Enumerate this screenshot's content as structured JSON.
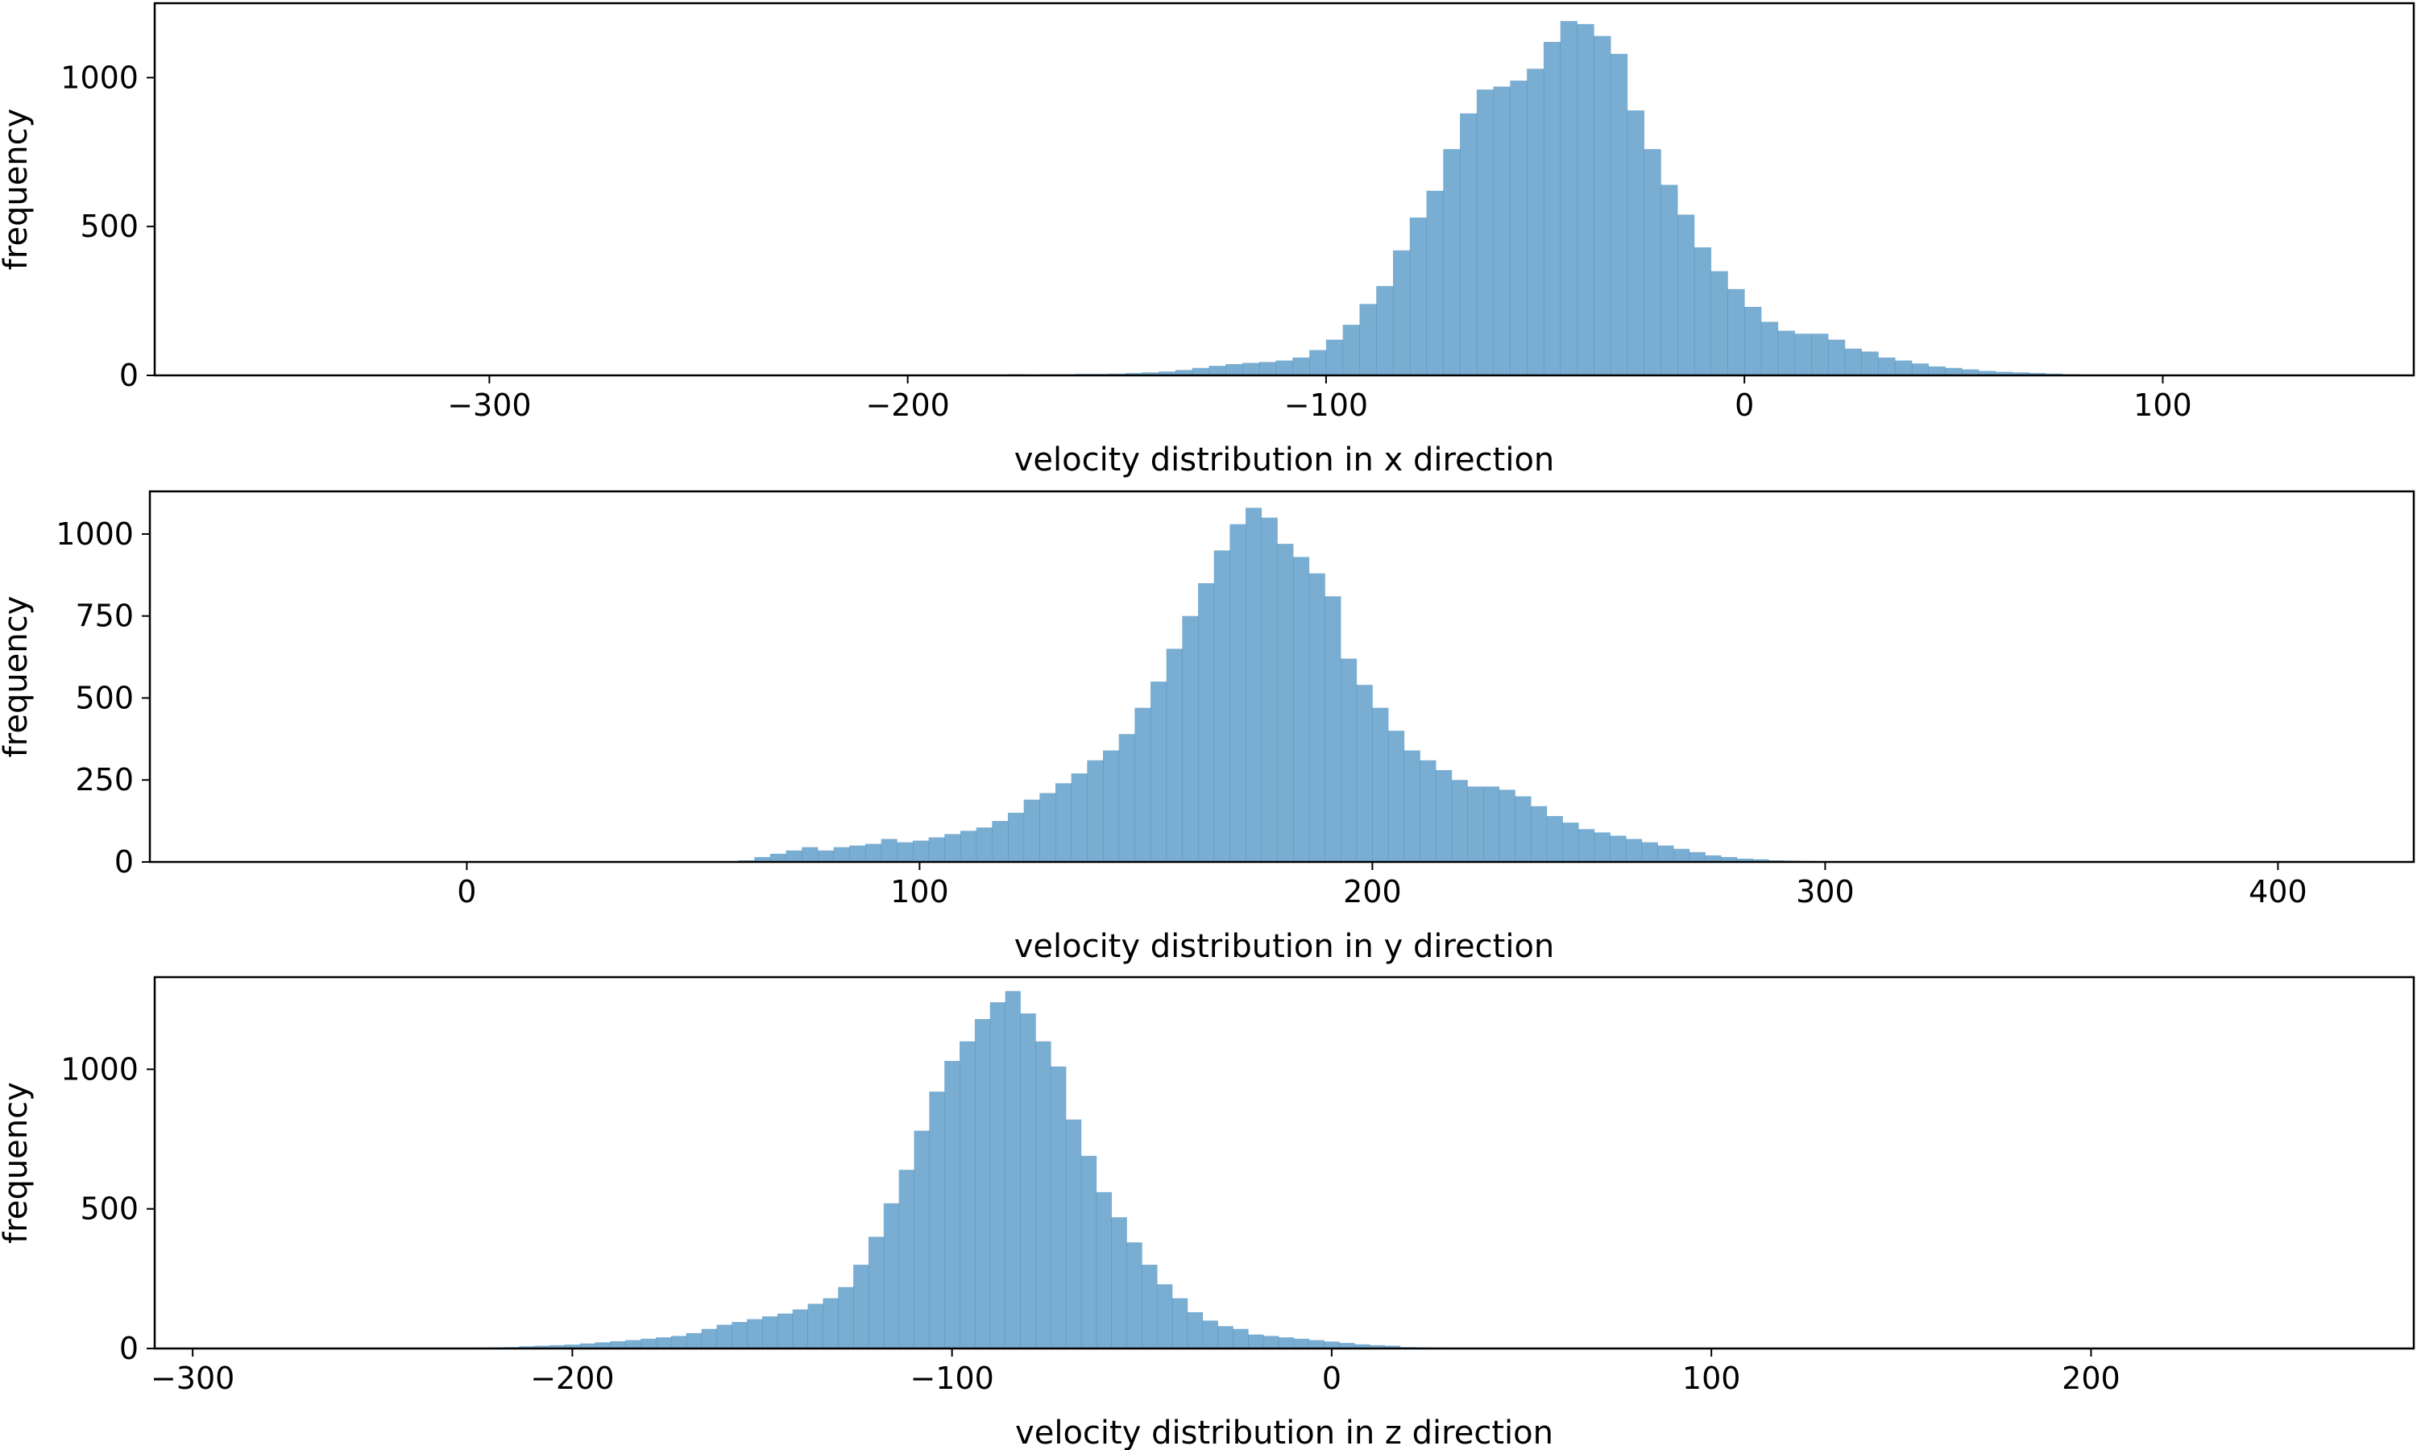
{
  "chart_data": [
    {
      "type": "bar",
      "histogram": true,
      "xlabel": "velocity distribution in x direction",
      "ylabel": "frequency",
      "xlim": [
        -380,
        160
      ],
      "ylim": [
        0,
        1250
      ],
      "xticks": [
        -300,
        -200,
        -100,
        0,
        100
      ],
      "xtick_labels": [
        "−300",
        "−200",
        "−100",
        "0",
        "100"
      ],
      "yticks": [
        0,
        500,
        1000
      ],
      "ytick_labels": [
        "0",
        "500",
        "1000"
      ],
      "bin_start": -200,
      "bin_width": 4,
      "values": [
        2,
        2,
        3,
        3,
        2,
        3,
        4,
        3,
        4,
        4,
        5,
        5,
        6,
        8,
        10,
        13,
        18,
        25,
        32,
        38,
        42,
        45,
        50,
        60,
        85,
        120,
        170,
        240,
        300,
        420,
        530,
        620,
        760,
        880,
        960,
        970,
        990,
        1030,
        1120,
        1190,
        1180,
        1140,
        1080,
        890,
        760,
        640,
        540,
        430,
        350,
        290,
        230,
        180,
        150,
        140,
        140,
        120,
        90,
        80,
        60,
        50,
        40,
        30,
        25,
        20,
        15,
        12,
        10,
        8,
        6,
        4,
        3,
        2,
        2,
        1,
        1
      ]
    },
    {
      "type": "bar",
      "histogram": true,
      "xlabel": "velocity distribution in y direction",
      "ylabel": "frequency",
      "xlim": [
        -70,
        430
      ],
      "ylim": [
        0,
        1130
      ],
      "xticks": [
        0,
        100,
        200,
        300,
        400
      ],
      "xtick_labels": [
        "0",
        "100",
        "200",
        "300",
        "400"
      ],
      "yticks": [
        0,
        250,
        500,
        750,
        1000
      ],
      "ytick_labels": [
        "0",
        "250",
        "500",
        "750",
        "1000"
      ],
      "bin_start": 60,
      "bin_width": 3.5,
      "values": [
        5,
        15,
        25,
        35,
        45,
        35,
        45,
        50,
        55,
        70,
        60,
        65,
        75,
        85,
        95,
        105,
        125,
        150,
        190,
        210,
        240,
        270,
        310,
        340,
        390,
        470,
        550,
        650,
        750,
        850,
        950,
        1030,
        1080,
        1050,
        970,
        930,
        880,
        810,
        620,
        540,
        470,
        400,
        340,
        310,
        280,
        250,
        230,
        230,
        220,
        200,
        170,
        140,
        120,
        100,
        90,
        80,
        70,
        60,
        50,
        40,
        30,
        20,
        15,
        10,
        8,
        5,
        4,
        3,
        2,
        1
      ]
    },
    {
      "type": "bar",
      "histogram": true,
      "xlabel": "velocity distribution in z direction",
      "ylabel": "frequency",
      "xlim": [
        -310,
        285
      ],
      "ylim": [
        0,
        1330
      ],
      "xticks": [
        -300,
        -200,
        -100,
        0,
        100,
        200
      ],
      "xtick_labels": [
        "−300",
        "−200",
        "−100",
        "0",
        "100",
        "200"
      ],
      "yticks": [
        0,
        500,
        1000
      ],
      "ytick_labels": [
        "0",
        "500",
        "1000"
      ],
      "bin_start": -230,
      "bin_width": 4,
      "values": [
        2,
        3,
        4,
        5,
        8,
        10,
        12,
        14,
        18,
        22,
        26,
        30,
        35,
        40,
        45,
        55,
        70,
        85,
        95,
        105,
        115,
        125,
        140,
        160,
        180,
        220,
        300,
        400,
        520,
        640,
        780,
        920,
        1030,
        1100,
        1180,
        1240,
        1280,
        1200,
        1100,
        1010,
        820,
        690,
        560,
        470,
        380,
        300,
        230,
        180,
        130,
        100,
        80,
        70,
        50,
        45,
        40,
        35,
        30,
        25,
        20,
        15,
        12,
        10,
        5,
        4,
        3,
        2,
        1
      ]
    }
  ],
  "colors": {
    "bar": "#1f77b4",
    "bar_opacity": 0.6,
    "axes": "#000000"
  }
}
